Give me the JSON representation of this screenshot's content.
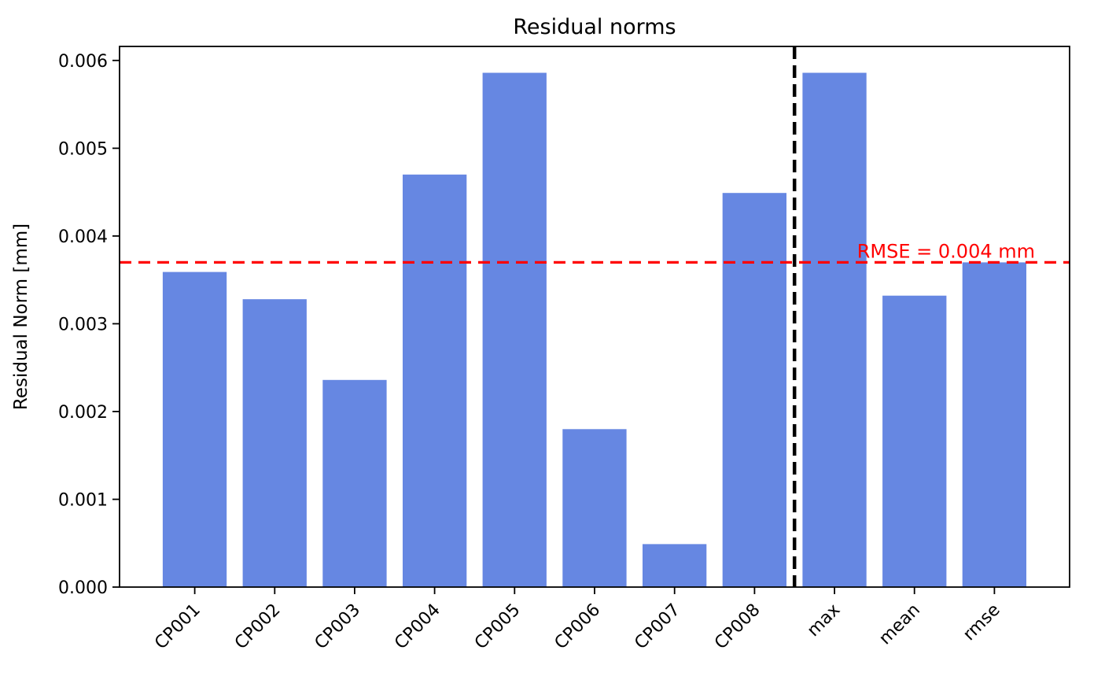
{
  "chart_data": {
    "type": "bar",
    "title": "Residual norms",
    "xlabel": "",
    "ylabel": "Residual Norm [mm]",
    "categories": [
      "CP001",
      "CP002",
      "CP003",
      "CP004",
      "CP005",
      "CP006",
      "CP007",
      "CP008",
      "max",
      "mean",
      "rmse"
    ],
    "values": [
      0.00359,
      0.00328,
      0.00236,
      0.0047,
      0.00586,
      0.0018,
      0.00049,
      0.00449,
      0.00586,
      0.00332,
      0.0037
    ],
    "ylim": [
      0,
      0.00616
    ],
    "yticks": [
      0,
      0.001,
      0.002,
      0.003,
      0.004,
      0.005,
      0.006
    ],
    "ytick_labels": [
      "0.000",
      "0.001",
      "0.002",
      "0.003",
      "0.004",
      "0.005",
      "0.006"
    ],
    "x_tick_rotation": 45,
    "grid": false,
    "legend": null,
    "bar_color": "#6687e2",
    "axis_color": "#000000",
    "text_color": "#000000",
    "annotations": {
      "rmse_line": {
        "value": 0.0037,
        "label": "RMSE = 0.004 mm",
        "color": "#ff0000",
        "style": "dashed"
      },
      "separator_line": {
        "between": [
          "CP008",
          "max"
        ],
        "color": "#000000",
        "style": "dashed"
      }
    }
  }
}
